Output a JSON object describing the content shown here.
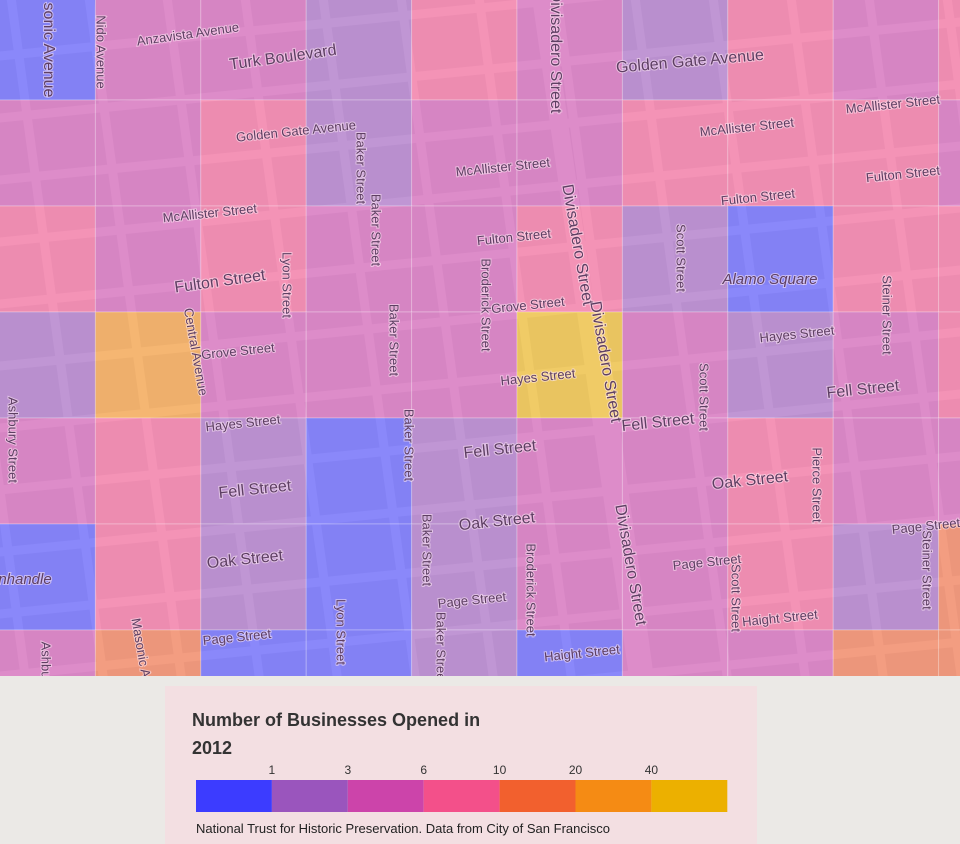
{
  "map": {
    "labels": [
      "sonic Avenue",
      "Nido Avenue",
      "Anzavista Avenue",
      "Turk Boulevard",
      "Golden Gate Avenue",
      "Divisadero Street",
      "Golden Gate Avenue",
      "Baker Street",
      "McAllister Street",
      "McAllister Street",
      "McAllister Street",
      "Fulton Street",
      "Fulton Street",
      "Divisadero Street",
      "McAllister Street",
      "Baker Street",
      "Fulton Street",
      "Fulton Street",
      "Lyon Street",
      "Broderick Street",
      "Grove Street",
      "Scott Street",
      "Alamo Square",
      "Steiner Street",
      "Central Avenue",
      "Grove Street",
      "Baker Street",
      "Divisadero Street",
      "Hayes Street",
      "Hayes Street",
      "Scott Street",
      "Fell Street",
      "Ashbury Street",
      "Hayes Street",
      "Baker Street",
      "Fell Street",
      "Fell Street",
      "Oak Street",
      "Pierce Street",
      "Fell Street",
      "Oak Street",
      "Baker Street",
      "Divisadero Street",
      "Oak Street",
      "nhandle",
      "Broderick Street",
      "Page Street",
      "Scott Street",
      "Page Street",
      "Steiner Street",
      "Page Street",
      "Lyon Street",
      "Baker Street",
      "Haight Street",
      "Haight Street",
      "Page Street",
      "Masonic A",
      "Ashbu"
    ],
    "grid": {
      "rows": [
        [
          0,
          2,
          2,
          1,
          3,
          2,
          1,
          3,
          2,
          3
        ],
        [
          2,
          2,
          3,
          1,
          2,
          2,
          3,
          3,
          3,
          2
        ],
        [
          3,
          2,
          3,
          2,
          2,
          3,
          1,
          0,
          3,
          3
        ],
        [
          1,
          5,
          2,
          2,
          2,
          6,
          2,
          1,
          2,
          3
        ],
        [
          2,
          3,
          1,
          0,
          1,
          2,
          2,
          3,
          2,
          2
        ],
        [
          0,
          3,
          1,
          0,
          1,
          2,
          2,
          3,
          1,
          4
        ],
        [
          2,
          4,
          0,
          0,
          1,
          0,
          2,
          2,
          4,
          4
        ]
      ]
    }
  },
  "legend": {
    "title": "Number of Businesses Opened in 2012",
    "ticks": [
      1,
      3,
      6,
      10,
      20,
      40
    ],
    "colors": [
      "#3c3cff",
      "#9a55bd",
      "#cc44aa",
      "#f3508a",
      "#f2602e",
      "#f58b14",
      "#ecb000"
    ],
    "attribution": "National Trust for Historic Preservation. Data from City of San Francisco"
  }
}
